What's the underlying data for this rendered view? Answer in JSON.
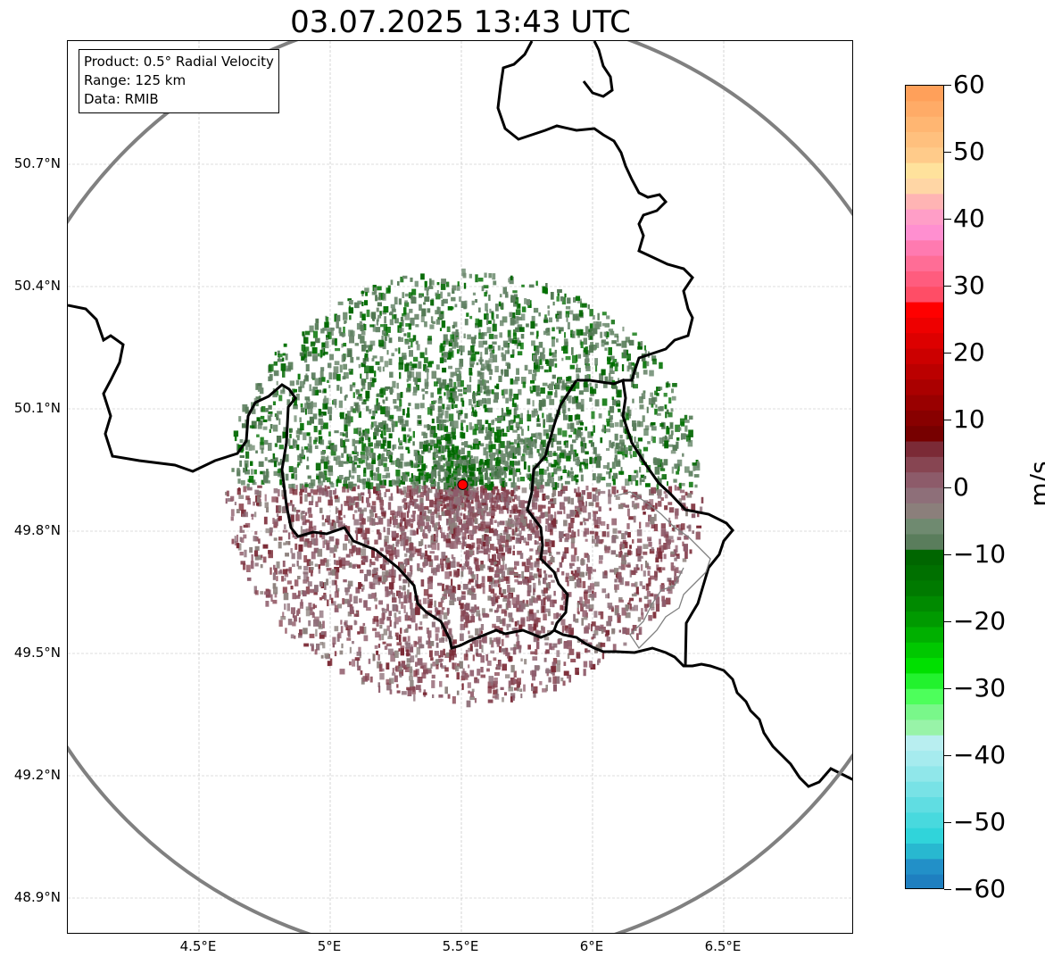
{
  "title": "03.07.2025 13:43 UTC",
  "info_box": {
    "product": "Product: 0.5° Radial Velocity",
    "range": "Range: 125 km",
    "data": "Data: RMIB"
  },
  "map": {
    "lat_range": [
      48.8,
      51.0
    ],
    "lon_range": [
      4.0,
      7.0
    ],
    "lat_ticks": [
      {
        "value": 48.9,
        "label": "48.9°N"
      },
      {
        "value": 49.2,
        "label": "49.2°N"
      },
      {
        "value": 49.5,
        "label": "49.5°N"
      },
      {
        "value": 49.8,
        "label": "49.8°N"
      },
      {
        "value": 50.1,
        "label": "50.1°N"
      },
      {
        "value": 50.4,
        "label": "50.4°N"
      },
      {
        "value": 50.7,
        "label": "50.7°N"
      }
    ],
    "lon_ticks": [
      {
        "value": 4.5,
        "label": "4.5°E"
      },
      {
        "value": 5.0,
        "label": "5°E"
      },
      {
        "value": 5.5,
        "label": "5.5°E"
      },
      {
        "value": 6.0,
        "label": "6°E"
      },
      {
        "value": 6.5,
        "label": "6.5°E"
      }
    ],
    "radar_site": {
      "lat": 49.914,
      "lon": 5.505
    },
    "radar_marker_color": "#ff0000",
    "range_ring_color": "#808080",
    "border_color": "#000000",
    "gridlines": true
  },
  "colorbar": {
    "unit": "m/s",
    "min": -60,
    "max": 60,
    "ticks": [
      {
        "value": 60,
        "label": "60"
      },
      {
        "value": 50,
        "label": "50"
      },
      {
        "value": 40,
        "label": "40"
      },
      {
        "value": 30,
        "label": "30"
      },
      {
        "value": 20,
        "label": "20"
      },
      {
        "value": 10,
        "label": "10"
      },
      {
        "value": 0,
        "label": "0"
      },
      {
        "value": -10,
        "label": "−10"
      },
      {
        "value": -20,
        "label": "−20"
      },
      {
        "value": -30,
        "label": "−30"
      },
      {
        "value": -40,
        "label": "−40"
      },
      {
        "value": -50,
        "label": "−50"
      },
      {
        "value": -60,
        "label": "−60"
      }
    ],
    "colors_top_to_bottom": [
      "#ffa05a",
      "#ffab67",
      "#ffb672",
      "#ffc07e",
      "#ffcb8a",
      "#ffe29c",
      "#ffd6a5",
      "#ffb4b4",
      "#ff9ec7",
      "#ff8fd0",
      "#ff7ab0",
      "#ff6d96",
      "#ff5c7e",
      "#ff4d66",
      "#ff0000",
      "#ee0000",
      "#dd0000",
      "#cc0000",
      "#bb0000",
      "#aa0000",
      "#990000",
      "#880000",
      "#770000",
      "#7b2a36",
      "#874552",
      "#8d5b6a",
      "#8e6f79",
      "#8b7f7b",
      "#6f8a70",
      "#5a7d5c",
      "#006600",
      "#007000",
      "#007a00",
      "#008a00",
      "#009a00",
      "#00b000",
      "#00c800",
      "#00e000",
      "#22f22e",
      "#4dff5b",
      "#79f78a",
      "#98f3a8",
      "#b8eef0",
      "#a6ebee",
      "#90e7ea",
      "#78e2e6",
      "#60dde2",
      "#48d9de",
      "#30d4da",
      "#28b8d0",
      "#2290c8",
      "#1e7fc0"
    ]
  }
}
